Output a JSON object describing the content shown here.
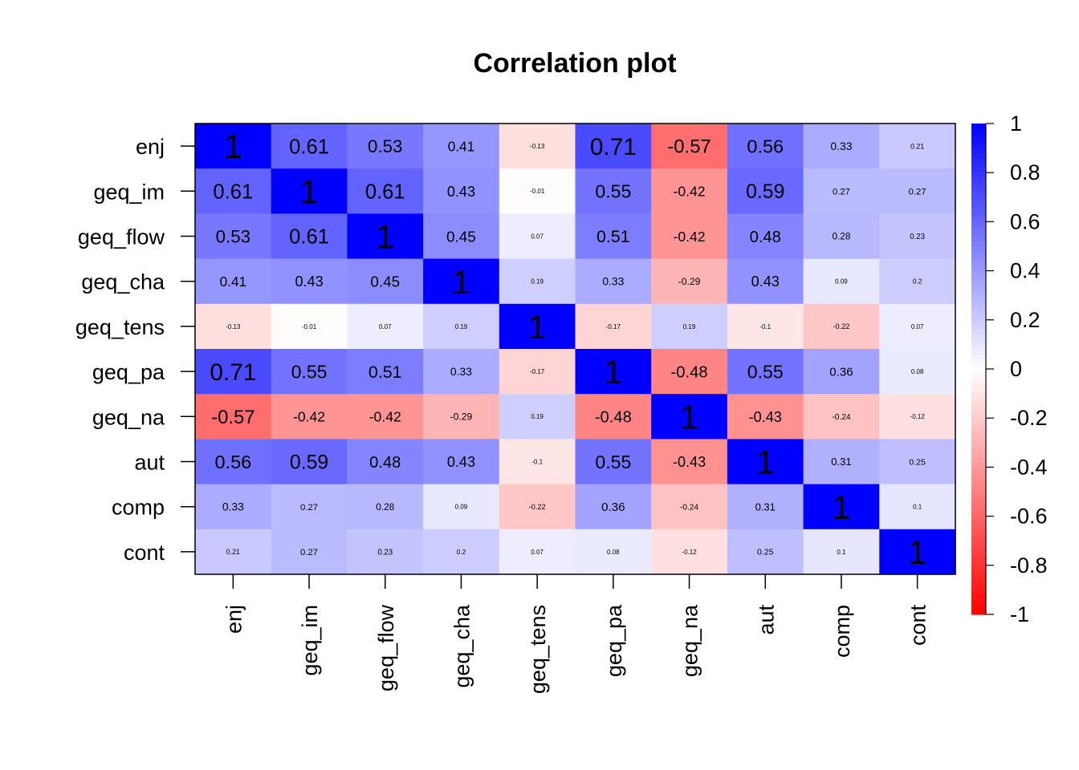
{
  "chart_data": {
    "type": "heatmap",
    "title": "Correlation plot",
    "variables": [
      "enj",
      "geq_im",
      "geq_flow",
      "geq_cha",
      "geq_tens",
      "geq_pa",
      "geq_na",
      "aut",
      "comp",
      "cont"
    ],
    "matrix": [
      [
        1,
        0.61,
        0.53,
        0.41,
        -0.13,
        0.71,
        -0.57,
        0.56,
        0.33,
        0.21
      ],
      [
        0.61,
        1,
        0.61,
        0.43,
        -0.01,
        0.55,
        -0.42,
        0.59,
        0.27,
        0.27
      ],
      [
        0.53,
        0.61,
        1,
        0.45,
        0.07,
        0.51,
        -0.42,
        0.48,
        0.28,
        0.23
      ],
      [
        0.41,
        0.43,
        0.45,
        1,
        0.19,
        0.33,
        -0.29,
        0.43,
        0.09,
        0.2
      ],
      [
        -0.13,
        -0.01,
        0.07,
        0.19,
        1,
        -0.17,
        0.19,
        -0.1,
        -0.22,
        0.07
      ],
      [
        0.71,
        0.55,
        0.51,
        0.33,
        -0.17,
        1,
        -0.48,
        0.55,
        0.36,
        0.08
      ],
      [
        -0.57,
        -0.42,
        -0.42,
        -0.29,
        0.19,
        -0.48,
        1,
        -0.43,
        -0.24,
        -0.12
      ],
      [
        0.56,
        0.59,
        0.48,
        0.43,
        -0.1,
        0.55,
        -0.43,
        1,
        0.31,
        0.25
      ],
      [
        0.33,
        0.27,
        0.28,
        0.09,
        -0.22,
        0.36,
        -0.24,
        0.31,
        1,
        0.1
      ],
      [
        0.21,
        0.27,
        0.23,
        0.2,
        0.07,
        0.08,
        -0.12,
        0.25,
        0.1,
        1
      ]
    ],
    "color_range": [
      -1,
      1
    ],
    "colors": {
      "negative": "#ff0000",
      "zero": "#ffffff",
      "positive": "#0000ff"
    },
    "legend_ticks": [
      "1",
      "0.8",
      "0.6",
      "0.4",
      "0.2",
      "0",
      "-0.2",
      "-0.4",
      "-0.6",
      "-0.8",
      "-1"
    ],
    "legend_position": "right"
  }
}
